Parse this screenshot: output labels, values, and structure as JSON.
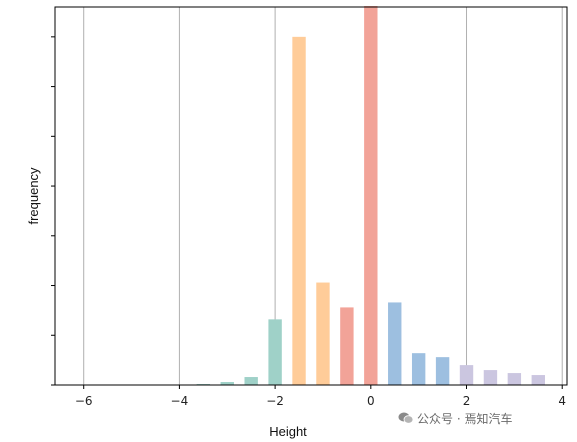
{
  "chart_data": {
    "type": "bar",
    "title": "",
    "xlabel": "Height",
    "ylabel": "frequency",
    "xlim": [
      -6.6,
      4.1
    ],
    "ylim": [
      0,
      380
    ],
    "xticks": [
      -6,
      -4,
      -2,
      0,
      2,
      4
    ],
    "xtick_labels": [
      "−6",
      "−4",
      "−2",
      "0",
      "2",
      "4"
    ],
    "grid": "vertical",
    "bar_width": 0.28,
    "bars": [
      {
        "x": -3.5,
        "value": 1,
        "color": "#9fd1c8"
      },
      {
        "x": -3.0,
        "value": 3,
        "color": "#9fd1c8"
      },
      {
        "x": -2.5,
        "value": 8,
        "color": "#9fd1c8"
      },
      {
        "x": -2.0,
        "value": 66,
        "color": "#9fd1c8"
      },
      {
        "x": -1.5,
        "value": 350,
        "color": "#ffcc99"
      },
      {
        "x": -1.0,
        "value": 103,
        "color": "#ffcc99"
      },
      {
        "x": -0.5,
        "value": 78,
        "color": "#f2a398"
      },
      {
        "x": 0.0,
        "value": 381,
        "color": "#f2a398"
      },
      {
        "x": 0.5,
        "value": 83,
        "color": "#9dbfe0"
      },
      {
        "x": 1.0,
        "value": 32,
        "color": "#9dbfe0"
      },
      {
        "x": 1.5,
        "value": 28,
        "color": "#9dbfe0"
      },
      {
        "x": 2.0,
        "value": 20,
        "color": "#cbc6e0"
      },
      {
        "x": 2.5,
        "value": 15,
        "color": "#cbc6e0"
      },
      {
        "x": 3.0,
        "value": 12,
        "color": "#cbc6e0"
      },
      {
        "x": 3.5,
        "value": 10,
        "color": "#cbc6e0"
      }
    ]
  },
  "watermark": {
    "text": "公众号 · 焉知汽车",
    "icon": "wechat-icon"
  }
}
